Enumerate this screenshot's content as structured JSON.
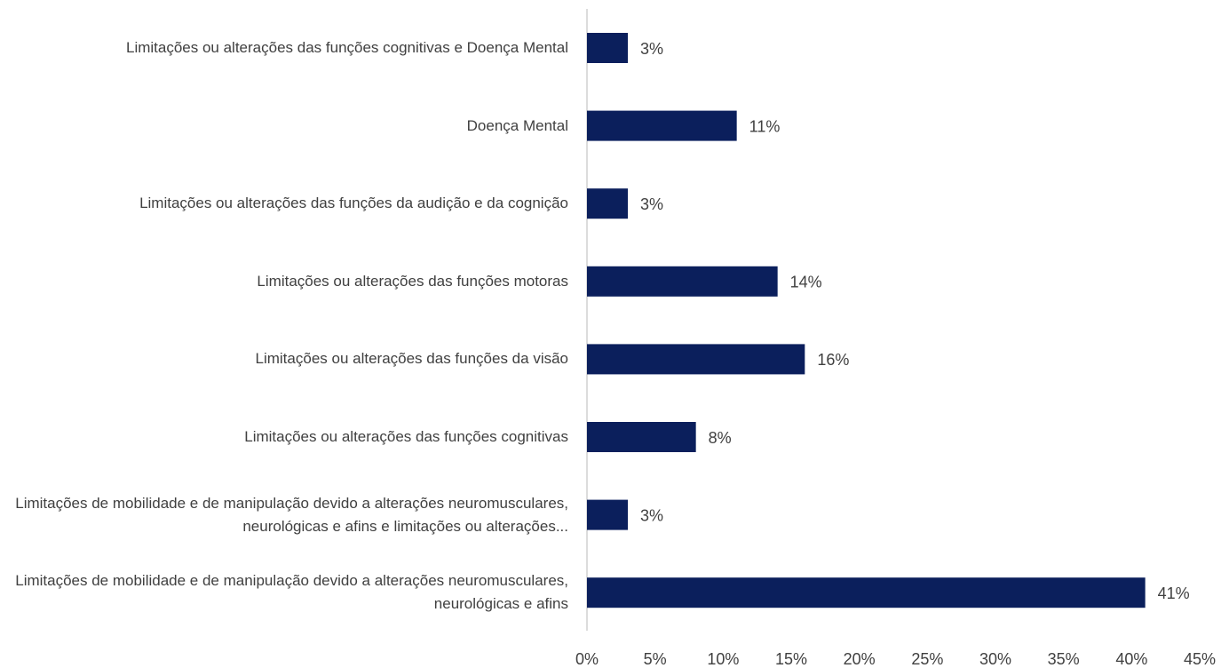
{
  "chart_data": {
    "type": "bar",
    "orientation": "horizontal",
    "color": "#0b1f5c",
    "categories": [
      "Limitações ou alterações das funções cognitivas e Doença Mental",
      "Doença Mental",
      "Limitações ou alterações das funções da audição e da cognição",
      "Limitações ou alterações das funções motoras",
      "Limitações ou alterações das funções da visão",
      "Limitações ou alterações das funções cognitivas",
      "Limitações de mobilidade e de manipulação devido a alterações neuromusculares, neurológicas e afins e limitações ou alterações...",
      "Limitações de mobilidade e de manipulação devido a alterações neuromusculares, neurológicas e afins"
    ],
    "values": [
      3,
      11,
      3,
      14,
      16,
      8,
      3,
      41
    ],
    "value_labels": [
      "3%",
      "11%",
      "3%",
      "14%",
      "16%",
      "8%",
      "3%",
      "41%"
    ],
    "xlim": [
      0,
      45
    ],
    "xticks": [
      {
        "value": 0,
        "label": "0%"
      },
      {
        "value": 5,
        "label": "5%"
      },
      {
        "value": 10,
        "label": "10%"
      },
      {
        "value": 15,
        "label": "15%"
      },
      {
        "value": 20,
        "label": "20%"
      },
      {
        "value": 25,
        "label": "25%"
      },
      {
        "value": 30,
        "label": "30%"
      },
      {
        "value": 35,
        "label": "35%"
      },
      {
        "value": 40,
        "label": "40%"
      },
      {
        "value": 45,
        "label": "45%"
      }
    ]
  }
}
